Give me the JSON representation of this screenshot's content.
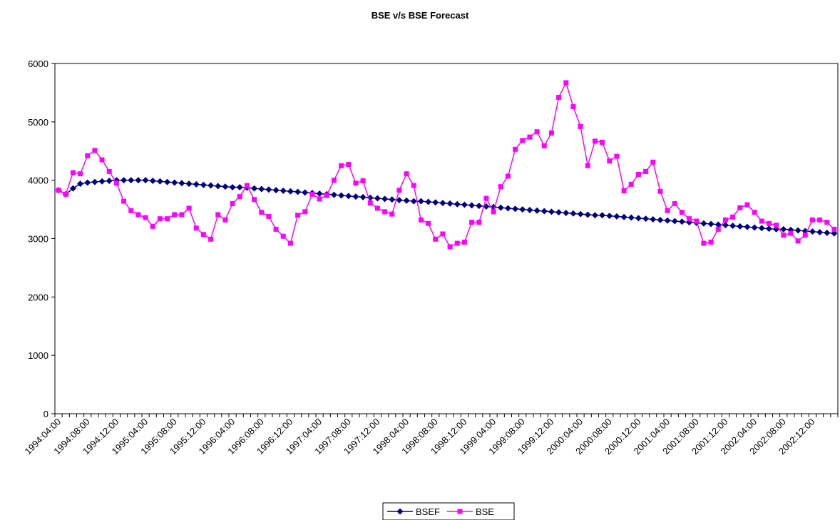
{
  "chart_data": {
    "type": "line",
    "title": "BSE v/s BSE Forecast",
    "categories": [
      "1994:04:00",
      null,
      null,
      null,
      "1994:08:00",
      null,
      null,
      null,
      "1994:12:00",
      null,
      null,
      null,
      "1995:04:00",
      null,
      null,
      null,
      "1995:08:00",
      null,
      null,
      null,
      "1995:12:00",
      null,
      null,
      null,
      "1996:04:00",
      null,
      null,
      null,
      "1996:08:00",
      null,
      null,
      null,
      "1996:12:00",
      null,
      null,
      null,
      "1997:04:00",
      null,
      null,
      null,
      "1997:08:00",
      null,
      null,
      null,
      "1997:12:00",
      null,
      null,
      null,
      "1998:04:00",
      null,
      null,
      null,
      "1998:08:00",
      null,
      null,
      null,
      "1998:12:00",
      null,
      null,
      null,
      "1999:04:00",
      null,
      null,
      null,
      "1999:08:00",
      null,
      null,
      null,
      "1999:12:00",
      null,
      null,
      null,
      "2000:04:00",
      null,
      null,
      null,
      "2000:08:00",
      null,
      null,
      null,
      "2000:12:00",
      null,
      null,
      null,
      "2001:04:00",
      null,
      null,
      null,
      "2001:08:00",
      null,
      null,
      null,
      "2001:12:00",
      null,
      null,
      null,
      "2002:04:00",
      null,
      null,
      null,
      "2002:08:00",
      null,
      null,
      null,
      "2002:12:00",
      null,
      null,
      null
    ],
    "series": [
      {
        "name": "BSEF",
        "color": "#000080",
        "marker": "diamond",
        "values": [
          3830,
          3760,
          3860,
          3940,
          3960,
          3970,
          3980,
          3990,
          4000,
          4000,
          4000,
          4000,
          4000,
          3990,
          3980,
          3970,
          3960,
          3950,
          3940,
          3930,
          3920,
          3910,
          3900,
          3890,
          3880,
          3880,
          3870,
          3860,
          3850,
          3840,
          3830,
          3820,
          3810,
          3800,
          3790,
          3780,
          3770,
          3760,
          3750,
          3740,
          3730,
          3720,
          3710,
          3700,
          3690,
          3680,
          3670,
          3660,
          3650,
          3640,
          3640,
          3630,
          3620,
          3610,
          3600,
          3590,
          3580,
          3570,
          3560,
          3550,
          3540,
          3530,
          3520,
          3510,
          3500,
          3490,
          3480,
          3470,
          3460,
          3450,
          3440,
          3430,
          3420,
          3410,
          3400,
          3400,
          3390,
          3380,
          3370,
          3360,
          3350,
          3340,
          3330,
          3320,
          3310,
          3300,
          3290,
          3280,
          3270,
          3260,
          3250,
          3240,
          3230,
          3220,
          3210,
          3200,
          3190,
          3180,
          3170,
          3160,
          3160,
          3150,
          3140,
          3130,
          3120,
          3110,
          3100,
          3090
        ]
      },
      {
        "name": "BSE",
        "color": "#ff00ff",
        "marker": "square",
        "values": [
          3830,
          3760,
          4130,
          4110,
          4420,
          4510,
          4350,
          4150,
          3950,
          3640,
          3480,
          3410,
          3360,
          3210,
          3340,
          3340,
          3410,
          3410,
          3520,
          3180,
          3070,
          2990,
          3410,
          3320,
          3600,
          3720,
          3910,
          3670,
          3450,
          3380,
          3160,
          3040,
          2920,
          3400,
          3460,
          3760,
          3680,
          3740,
          4000,
          4250,
          4270,
          3950,
          3990,
          3610,
          3520,
          3460,
          3420,
          3830,
          4110,
          3910,
          3320,
          3260,
          2990,
          3080,
          2860,
          2920,
          2940,
          3280,
          3280,
          3690,
          3460,
          3890,
          4070,
          4530,
          4680,
          4740,
          4830,
          4590,
          4810,
          5420,
          5670,
          5260,
          4920,
          4250,
          4670,
          4650,
          4330,
          4410,
          3820,
          3930,
          4100,
          4150,
          4310,
          3810,
          3480,
          3600,
          3450,
          3340,
          3300,
          2920,
          2940,
          3160,
          3320,
          3370,
          3530,
          3580,
          3450,
          3300,
          3260,
          3230,
          3060,
          3090,
          2960,
          3060,
          3320,
          3320,
          3280,
          3160
        ]
      }
    ],
    "ylim": [
      0,
      6000
    ],
    "yticks": [
      0,
      1000,
      2000,
      3000,
      4000,
      5000,
      6000
    ]
  }
}
